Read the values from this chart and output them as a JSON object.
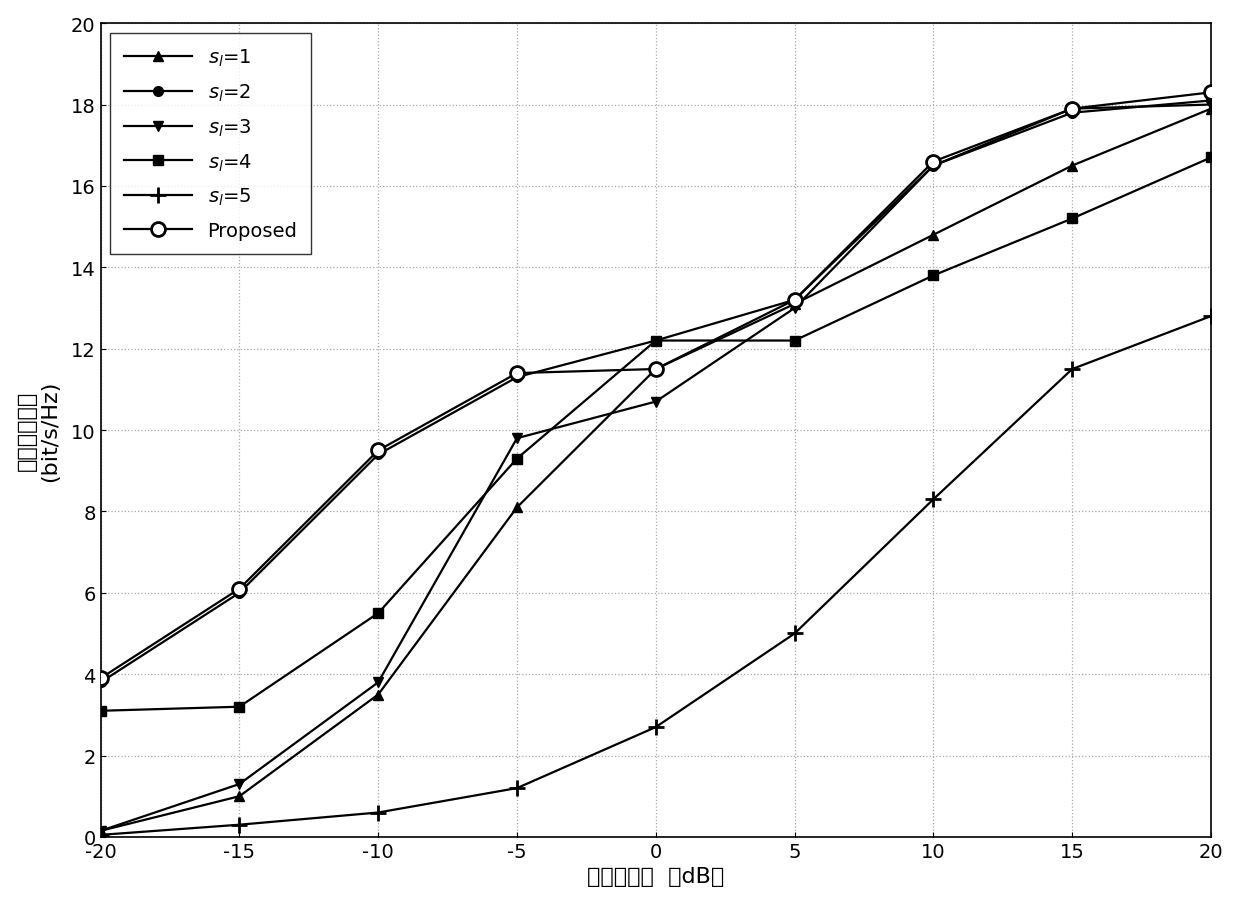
{
  "x": [
    -20,
    -15,
    -10,
    -5,
    0,
    5,
    10,
    15,
    20
  ],
  "s1_y": [
    0.15,
    1.0,
    3.5,
    8.1,
    11.5,
    13.1,
    14.8,
    16.5,
    17.9
  ],
  "s2_y": [
    3.8,
    6.0,
    9.4,
    11.3,
    12.2,
    13.2,
    16.5,
    17.8,
    18.1
  ],
  "s3_y": [
    0.15,
    1.3,
    3.8,
    9.8,
    10.7,
    13.0,
    16.5,
    17.9,
    18.0
  ],
  "s4_y": [
    3.1,
    3.2,
    5.5,
    9.3,
    12.2,
    12.2,
    13.8,
    15.2,
    16.7
  ],
  "s5_y": [
    0.05,
    0.3,
    0.6,
    1.2,
    2.7,
    5.0,
    8.3,
    11.5,
    12.8
  ],
  "prop_y": [
    3.9,
    6.1,
    9.5,
    11.4,
    11.5,
    13.2,
    16.6,
    17.9,
    18.3
  ],
  "xlabel": "输入信噪比  （dB）",
  "ylabel_cn": "有效频谱效率",
  "ylabel_en": "(bit/s/Hz)",
  "xlim": [
    -20,
    20
  ],
  "ylim": [
    0,
    20
  ],
  "xticks": [
    -20,
    -15,
    -10,
    -5,
    0,
    5,
    10,
    15,
    20
  ],
  "yticks": [
    0,
    2,
    4,
    6,
    8,
    10,
    12,
    14,
    16,
    18,
    20
  ],
  "line_color": "#000000",
  "bg_color": "#ffffff",
  "grid_color": "#aaaaaa",
  "linewidth": 1.6,
  "markersize": 7,
  "legend_labels": [
    "$s_l$=1",
    "$s_l$=2",
    "$s_l$=3",
    "$s_l$=4",
    "$s_l$=5",
    "Proposed"
  ],
  "tick_fontsize": 14,
  "label_fontsize": 16,
  "legend_fontsize": 14
}
